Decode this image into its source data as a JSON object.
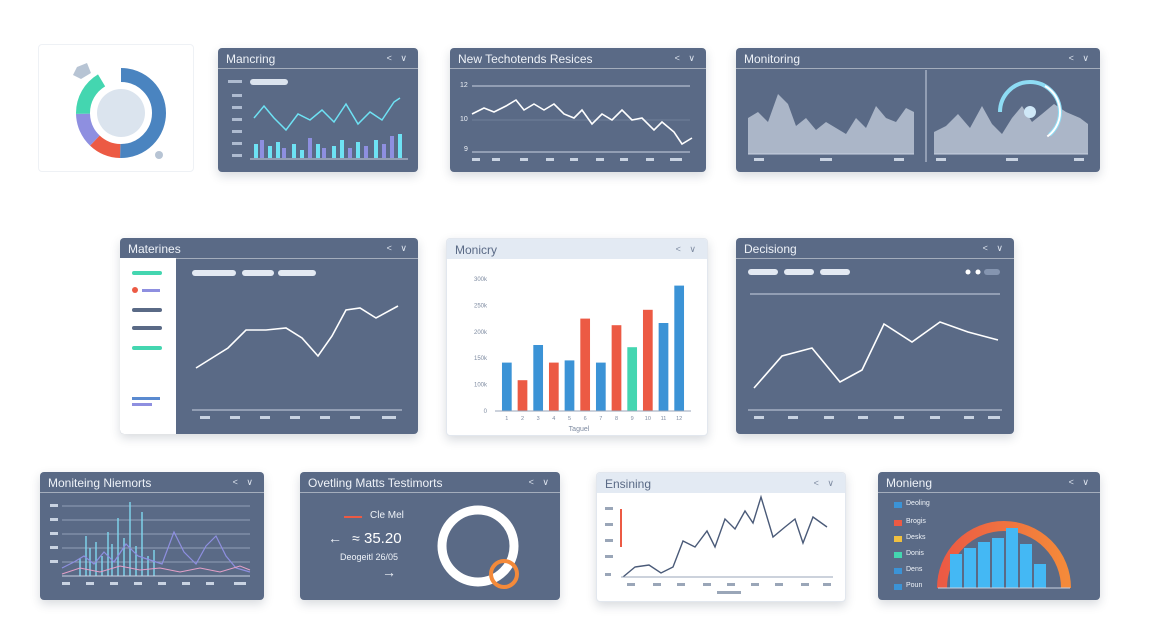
{
  "panels": {
    "p1_title": "Mancring",
    "p2_title": "New Techotends Resices",
    "p3_title": "Monitoring",
    "p4_title": "Materines",
    "p5_title": "Monicry",
    "p6_title": "Decisiong",
    "p7_title": "Moniteing Niemorts",
    "p8_title": "Ovetling Matts Testimorts",
    "p9_title": "Ensining",
    "p10_title": "Monieng"
  },
  "controls": {
    "label": "< ∨"
  },
  "p2_axis": {
    "y": [
      "12",
      "10",
      "9"
    ]
  },
  "p5_axis": {
    "y": [
      "300k",
      "250k",
      "200k",
      "150k",
      "100k",
      "0"
    ]
  },
  "p8": {
    "legend": "Cle Mel",
    "value": "35.20",
    "caption": "Deogeitl 26/05"
  },
  "p10_legend": [
    "Deoling",
    "Brogis",
    "Desks",
    "Donis",
    "Dens",
    "Poun"
  ],
  "colors": {
    "panel": "#5a6a86",
    "blue": "#3b93d6",
    "red": "#ec5a44",
    "teal": "#44d6b0",
    "cyan": "#6ee2f4",
    "purple": "#8e8fe0",
    "orange": "#f48a3a"
  },
  "chart_data": [
    {
      "type": "bar",
      "title": "Monicry",
      "categories": [
        "1",
        "2",
        "3",
        "4",
        "5",
        "6",
        "7",
        "8",
        "9",
        "10",
        "11",
        "12"
      ],
      "values": [
        110,
        70,
        150,
        110,
        115,
        210,
        110,
        195,
        145,
        230,
        200,
        285
      ],
      "colors": [
        "blue",
        "red",
        "blue",
        "red",
        "blue",
        "red",
        "blue",
        "red",
        "teal",
        "red",
        "blue",
        "blue"
      ],
      "ylim": [
        0,
        300
      ],
      "xlabel": "Taguel"
    }
  ]
}
